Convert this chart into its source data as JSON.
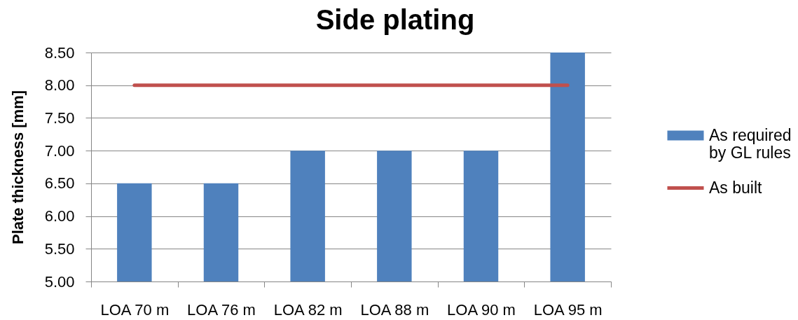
{
  "chart_data": {
    "type": "bar",
    "title": "Side plating",
    "ylabel": "Plate thickness [mm]",
    "categories": [
      "LOA 70 m",
      "LOA 76 m",
      "LOA 82 m",
      "LOA 88 m",
      "LOA 90 m",
      "LOA 95 m"
    ],
    "series": [
      {
        "name": "As required by GL rules",
        "color": "#4f81bd",
        "values": [
          6.5,
          6.5,
          7,
          7,
          7,
          8.5
        ]
      },
      {
        "name": "As built",
        "type": "line",
        "color": "#c0504d",
        "values": [
          8,
          8,
          8,
          8,
          8,
          8
        ]
      }
    ],
    "ylim": [
      5,
      8.5
    ],
    "yticks": [
      {
        "value": 5,
        "label": "5.00"
      },
      {
        "value": 5.5,
        "label": "5.50"
      },
      {
        "value": 6,
        "label": "6.00"
      },
      {
        "value": 6.5,
        "label": "6.50"
      },
      {
        "value": 7,
        "label": "7.00"
      },
      {
        "value": 7.5,
        "label": "7.50"
      },
      {
        "value": 8,
        "label": "8.00"
      },
      {
        "value": 8.5,
        "label": "8.50"
      }
    ],
    "grid": "y",
    "legend": "right"
  }
}
